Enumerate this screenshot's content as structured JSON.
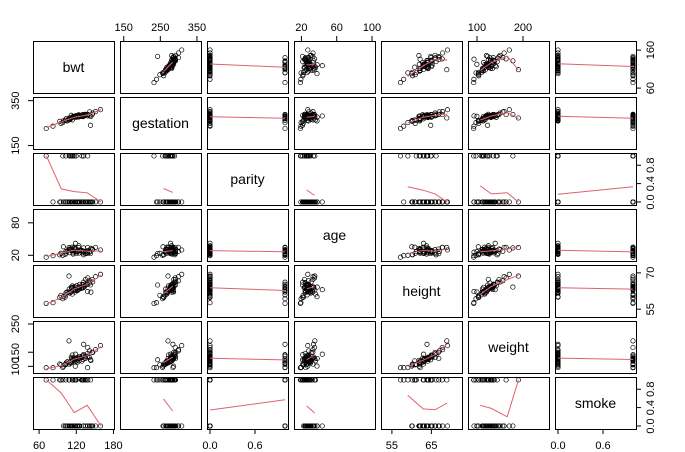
{
  "chart_data": {
    "type": "scatter",
    "kind": "scatterplot-matrix",
    "smoother": "lowess",
    "smoother_color": "#e06070",
    "point_color": "#000000",
    "variables": [
      {
        "name": "bwt",
        "range": [
          55,
          176
        ],
        "ticks": [
          60,
          120,
          160
        ],
        "tick_labels": [
          "60",
          "120",
          "160"
        ]
      },
      {
        "name": "gestation",
        "range": [
          148,
          353
        ],
        "ticks": [
          150,
          250,
          350
        ],
        "tick_labels": [
          "150",
          "250",
          "350"
        ]
      },
      {
        "name": "parity",
        "range": [
          0,
          1
        ],
        "ticks": [
          0.0,
          0.6
        ],
        "tick_labels": [
          "0.0",
          "0.6"
        ]
      },
      {
        "name": "age",
        "range": [
          15,
          100
        ],
        "ticks": [
          20,
          60,
          100
        ],
        "tick_labels": [
          "20",
          "60",
          "100"
        ]
      },
      {
        "name": "height",
        "range": [
          53,
          72
        ],
        "ticks": [
          55,
          65,
          70
        ],
        "tick_labels": [
          "55",
          "65",
          "70"
        ]
      },
      {
        "name": "weight",
        "range": [
          87,
          250
        ],
        "ticks": [
          100,
          200,
          250
        ],
        "tick_labels": [
          "100",
          "200",
          "250"
        ]
      },
      {
        "name": "smoke",
        "range": [
          0,
          1
        ],
        "ticks": [
          0.0,
          0.6,
          0.8
        ],
        "tick_labels": [
          "0.0",
          "0.6",
          "0.8"
        ]
      }
    ],
    "axes": {
      "top": [
        {
          "col": 1,
          "ticks": [
            150,
            250,
            350
          ],
          "labels": [
            "150",
            "250",
            "350"
          ]
        },
        {
          "col": 3,
          "ticks": [
            20,
            60,
            100
          ],
          "labels": [
            "20",
            "60",
            "100"
          ]
        },
        {
          "col": 5,
          "ticks": [
            100,
            200
          ],
          "labels": [
            "100",
            "200"
          ]
        }
      ],
      "bottom": [
        {
          "col": 0,
          "ticks": [
            60,
            120,
            180
          ],
          "labels": [
            "60",
            "120",
            "180"
          ]
        },
        {
          "col": 2,
          "ticks": [
            0.0,
            0.6
          ],
          "labels": [
            "0.0",
            "0.6"
          ]
        },
        {
          "col": 4,
          "ticks": [
            55,
            65
          ],
          "labels": [
            "55",
            "65"
          ]
        },
        {
          "col": 6,
          "ticks": [
            0.0,
            0.6
          ],
          "labels": [
            "0.0",
            "0.6"
          ]
        }
      ],
      "left": [
        {
          "row": 1,
          "ticks": [
            150,
            350
          ],
          "labels": [
            "150",
            "350"
          ]
        },
        {
          "row": 3,
          "ticks": [
            20,
            80
          ],
          "labels": [
            "20",
            "80"
          ]
        },
        {
          "row": 5,
          "ticks": [
            100,
            150,
            250
          ],
          "labels": [
            "100",
            "150",
            "250"
          ]
        }
      ],
      "right": [
        {
          "row": 0,
          "ticks": [
            60,
            160
          ],
          "labels": [
            "60",
            "160"
          ]
        },
        {
          "row": 2,
          "ticks": [
            0.0,
            0.4,
            0.8
          ],
          "labels": [
            "0.0",
            "0.4",
            "0.8"
          ]
        },
        {
          "row": 4,
          "ticks": [
            55,
            70
          ],
          "labels": [
            "55",
            "70"
          ]
        },
        {
          "row": 6,
          "ticks": [
            0.0,
            0.4,
            0.8
          ],
          "labels": [
            "0.0",
            "0.4",
            "0.8"
          ]
        }
      ]
    },
    "sample_points": {
      "bwt": [
        120,
        113,
        128,
        108,
        136,
        138,
        132,
        120,
        143,
        140,
        144,
        141,
        110,
        114,
        115,
        92,
        115,
        144,
        119,
        105,
        115,
        137,
        122,
        131,
        103,
        146,
        114,
        125,
        106,
        132,
        100,
        120,
        121,
        98,
        82,
        142,
        124,
        118,
        112,
        126,
        131,
        139,
        95,
        118,
        134,
        127,
        109,
        121,
        72,
        150,
        133,
        117,
        111,
        130,
        123,
        101,
        160,
        119,
        127,
        107
      ],
      "gestation": [
        284,
        282,
        279,
        270,
        292,
        282,
        286,
        279,
        244,
        286,
        281,
        287,
        265,
        271,
        268,
        260,
        275,
        288,
        277,
        267,
        280,
        290,
        274,
        283,
        262,
        294,
        276,
        285,
        264,
        287,
        259,
        281,
        278,
        255,
        240,
        298,
        284,
        280,
        272,
        283,
        286,
        291,
        250,
        279,
        289,
        284,
        269,
        282,
        230,
        300,
        288,
        277,
        270,
        285,
        281,
        261,
        310,
        279,
        284,
        266
      ],
      "parity": [
        0,
        0,
        1,
        0,
        0,
        0,
        1,
        0,
        0,
        1,
        0,
        0,
        1,
        0,
        0,
        0,
        1,
        0,
        0,
        0,
        1,
        0,
        0,
        0,
        1,
        0,
        0,
        0,
        0,
        1,
        0,
        0,
        0,
        1,
        0,
        0,
        0,
        0,
        1,
        0,
        0,
        0,
        0,
        1,
        0,
        0,
        0,
        0,
        1,
        0,
        0,
        0,
        1,
        0,
        0,
        0,
        0,
        1,
        0,
        0
      ],
      "age": [
        27,
        33,
        28,
        36,
        23,
        25,
        33,
        43,
        22,
        27,
        31,
        24,
        26,
        29,
        35,
        21,
        28,
        32,
        30,
        25,
        23,
        34,
        27,
        29,
        26,
        30,
        24,
        33,
        28,
        22,
        37,
        31,
        26,
        20,
        19,
        28,
        25,
        32,
        30,
        27,
        29,
        24,
        23,
        35,
        26,
        28,
        31,
        27,
        18,
        33,
        25,
        29,
        30,
        26,
        39,
        22,
        28,
        24,
        27,
        32
      ],
      "height": [
        62,
        64,
        64,
        69,
        67,
        62,
        64,
        63,
        65,
        65,
        62,
        66,
        63,
        64,
        61,
        60,
        65,
        67,
        63,
        62,
        64,
        68,
        63,
        65,
        61,
        66,
        64,
        63,
        62,
        66,
        60,
        64,
        65,
        59,
        58,
        67,
        63,
        64,
        62,
        65,
        64,
        66,
        61,
        63,
        65,
        64,
        62,
        63,
        57,
        68,
        64,
        63,
        62,
        65,
        64,
        60,
        69,
        63,
        64,
        62
      ],
      "weight": [
        100,
        135,
        115,
        190,
        125,
        93,
        178,
        140,
        125,
        136,
        120,
        130,
        110,
        128,
        118,
        105,
        140,
        150,
        122,
        112,
        126,
        165,
        118,
        135,
        108,
        148,
        124,
        132,
        115,
        142,
        104,
        127,
        133,
        99,
        95,
        155,
        121,
        129,
        113,
        137,
        128,
        144,
        102,
        125,
        139,
        131,
        117,
        123,
        92,
        160,
        130,
        120,
        114,
        138,
        126,
        103,
        170,
        122,
        129,
        111
      ],
      "smoke": [
        0,
        0,
        1,
        1,
        1,
        0,
        0,
        0,
        1,
        1,
        0,
        0,
        1,
        0,
        1,
        1,
        0,
        0,
        1,
        0,
        0,
        1,
        0,
        0,
        1,
        0,
        1,
        0,
        0,
        1,
        0,
        1,
        0,
        1,
        1,
        0,
        0,
        1,
        0,
        0,
        1,
        0,
        1,
        0,
        0,
        1,
        0,
        0,
        1,
        0,
        1,
        0,
        0,
        1,
        0,
        0,
        0,
        1,
        0,
        0
      ]
    }
  }
}
